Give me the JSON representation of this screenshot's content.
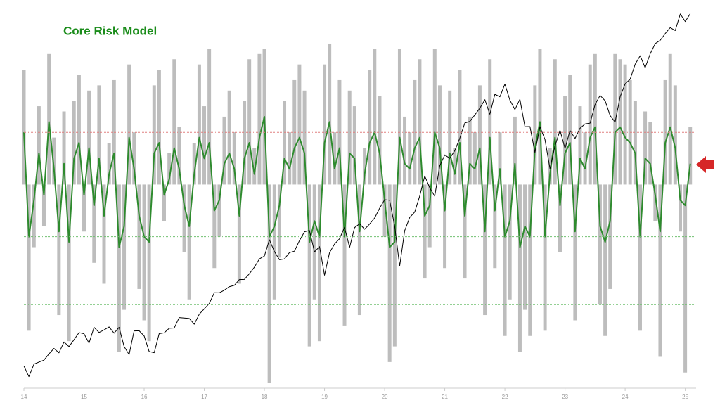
{
  "chart_data": {
    "type": "combo",
    "title": "Core Risk Model",
    "x": [
      14,
      14.083,
      14.167,
      14.25,
      14.333,
      14.417,
      14.5,
      14.583,
      14.667,
      14.75,
      14.833,
      14.917,
      15,
      15.083,
      15.167,
      15.25,
      15.333,
      15.417,
      15.5,
      15.583,
      15.667,
      15.75,
      15.833,
      15.917,
      16,
      16.083,
      16.167,
      16.25,
      16.333,
      16.417,
      16.5,
      16.583,
      16.667,
      16.75,
      16.833,
      16.917,
      17,
      17.083,
      17.167,
      17.25,
      17.333,
      17.417,
      17.5,
      17.583,
      17.667,
      17.75,
      17.833,
      17.917,
      18,
      18.083,
      18.167,
      18.25,
      18.333,
      18.417,
      18.5,
      18.583,
      18.667,
      18.75,
      18.833,
      18.917,
      19,
      19.083,
      19.167,
      19.25,
      19.333,
      19.417,
      19.5,
      19.583,
      19.667,
      19.75,
      19.833,
      19.917,
      20,
      20.083,
      20.167,
      20.25,
      20.333,
      20.417,
      20.5,
      20.583,
      20.667,
      20.75,
      20.833,
      20.917,
      21,
      21.083,
      21.167,
      21.25,
      21.333,
      21.417,
      21.5,
      21.583,
      21.667,
      21.75,
      21.833,
      21.917,
      22,
      22.083,
      22.167,
      22.25,
      22.333,
      22.417,
      22.5,
      22.583,
      22.667,
      22.75,
      22.833,
      22.917,
      23,
      23.083,
      23.167,
      23.25,
      23.333,
      23.417,
      23.5,
      23.583,
      23.667,
      23.75,
      23.833,
      23.917,
      24,
      24.083,
      24.167,
      24.25,
      24.333,
      24.417,
      24.5,
      24.583,
      24.667,
      24.75,
      24.833,
      24.917,
      25,
      25.083
    ],
    "xlim": [
      14,
      25.18
    ],
    "xticks": [
      14,
      15,
      16,
      17,
      18,
      19,
      20,
      21,
      22,
      23,
      24,
      25
    ],
    "ylim": [
      -3.9,
      3.4
    ],
    "y2lim": [
      1715,
      6175
    ],
    "y2log": true,
    "hlines": [
      {
        "value": 2.1,
        "color": "#e08080"
      },
      {
        "value": 1,
        "color": "#e08080"
      },
      {
        "value": -1,
        "color": "#70c070"
      },
      {
        "value": -2.3,
        "color": "#70c070"
      }
    ],
    "series": [
      {
        "type": "bar",
        "color": "#bdbdbd",
        "values": [
          2.2,
          -2.8,
          -1.2,
          1.5,
          -0.8,
          2.5,
          0.9,
          -2.5,
          1.4,
          -3.0,
          1.6,
          2.1,
          -0.9,
          1.8,
          -1.5,
          1.9,
          -1.9,
          0.8,
          2.0,
          -3.2,
          -2.4,
          2.3,
          1.0,
          -2.0,
          -2.6,
          -3.0,
          1.9,
          2.2,
          -0.7,
          0.6,
          2.4,
          1.1,
          -1.3,
          -2.2,
          0.8,
          2.3,
          1.5,
          2.6,
          -1.6,
          -1.0,
          1.3,
          1.8,
          1.0,
          -1.9,
          1.6,
          2.4,
          0.7,
          2.5,
          2.6,
          -3.8,
          -2.2,
          -1.4,
          1.6,
          1.0,
          2.0,
          2.3,
          1.8,
          -3.1,
          -2.2,
          -3.0,
          2.3,
          2.7,
          1.0,
          2.0,
          -2.7,
          1.8,
          1.5,
          -2.5,
          0.7,
          2.2,
          2.6,
          1.7,
          -1.0,
          -3.4,
          -3.1,
          2.6,
          1.3,
          1.0,
          2.0,
          2.4,
          -1.8,
          -1.2,
          2.6,
          1.9,
          -1.6,
          1.8,
          0.7,
          2.2,
          -1.8,
          1.3,
          1.0,
          1.9,
          -2.5,
          2.4,
          -1.6,
          1.0,
          -2.9,
          -2.2,
          1.3,
          -3.2,
          -2.4,
          -2.9,
          1.9,
          2.6,
          -2.8,
          0.7,
          2.4,
          -1.3,
          1.7,
          2.1,
          -2.6,
          1.5,
          1.0,
          2.3,
          2.5,
          -2.3,
          -2.9,
          -2.0,
          2.5,
          2.4,
          2.3,
          2.0,
          1.6,
          -2.8,
          1.4,
          1.2,
          -0.7,
          -3.3,
          2.0,
          2.5,
          1.9,
          -0.9,
          -3.6,
          1.1
        ]
      },
      {
        "type": "line",
        "color": "#2e8b2e",
        "values": [
          1.0,
          -1.0,
          -0.3,
          0.6,
          -0.2,
          1.2,
          0.3,
          -0.9,
          0.4,
          -1.1,
          0.5,
          0.8,
          -0.2,
          0.7,
          -0.4,
          0.5,
          -0.6,
          0.2,
          0.6,
          -1.2,
          -0.8,
          0.9,
          0.3,
          -0.6,
          -1.0,
          -1.1,
          0.6,
          0.8,
          -0.2,
          0.1,
          0.7,
          0.3,
          -0.4,
          -0.8,
          0.2,
          0.9,
          0.5,
          0.8,
          -0.5,
          -0.3,
          0.4,
          0.6,
          0.3,
          -0.6,
          0.5,
          0.8,
          0.2,
          0.9,
          1.3,
          -1.0,
          -0.8,
          -0.4,
          0.5,
          0.3,
          0.7,
          0.9,
          0.6,
          -1.1,
          -0.7,
          -1.0,
          0.8,
          1.2,
          0.3,
          0.7,
          -1.0,
          0.6,
          0.5,
          -0.9,
          0.2,
          0.8,
          1.0,
          0.6,
          -0.3,
          -1.2,
          -1.1,
          0.9,
          0.4,
          0.3,
          0.7,
          0.9,
          -0.6,
          -0.4,
          1.0,
          0.7,
          -0.5,
          0.6,
          0.2,
          0.8,
          -0.6,
          0.4,
          0.3,
          0.7,
          -0.9,
          0.9,
          -0.5,
          0.3,
          -1.0,
          -0.7,
          0.4,
          -1.2,
          -0.8,
          -1.0,
          0.7,
          1.2,
          -1.0,
          0.2,
          0.9,
          -0.4,
          0.6,
          0.8,
          -0.9,
          0.5,
          0.3,
          0.9,
          1.1,
          -0.8,
          -1.1,
          -0.7,
          1.0,
          1.1,
          0.9,
          0.8,
          0.6,
          -1.0,
          0.5,
          0.4,
          -0.2,
          -0.9,
          0.8,
          1.1,
          0.7,
          -0.3,
          -0.4,
          0.4
        ]
      },
      {
        "type": "line",
        "axis": "y2",
        "color": "#000000",
        "values": [
          1848,
          1783,
          1859,
          1872,
          1884,
          1924,
          1960,
          1931,
          2003,
          1972,
          2018,
          2067,
          2059,
          1995,
          2104,
          2068,
          2086,
          2107,
          2063,
          2104,
          1972,
          1920,
          2079,
          2080,
          2044,
          1940,
          1932,
          2060,
          2065,
          2097,
          2099,
          2174,
          2171,
          2168,
          2126,
          2199,
          2239,
          2279,
          2364,
          2363,
          2384,
          2412,
          2423,
          2470,
          2472,
          2519,
          2575,
          2648,
          2674,
          2824,
          2714,
          2641,
          2648,
          2705,
          2718,
          2816,
          2901,
          2914,
          2711,
          2760,
          2507,
          2704,
          2784,
          2834,
          2946,
          2752,
          2942,
          2980,
          2926,
          2977,
          3038,
          3141,
          3231,
          3226,
          2954,
          2585,
          2912,
          3044,
          3100,
          3271,
          3500,
          3363,
          3270,
          3622,
          3756,
          3714,
          3811,
          3973,
          4181,
          4204,
          4297,
          4395,
          4523,
          4307,
          4605,
          4567,
          4766,
          4516,
          4374,
          4530,
          4131,
          4132,
          3785,
          4130,
          3955,
          3585,
          3872,
          4080,
          3839,
          4077,
          3970,
          4109,
          4169,
          4180,
          4450,
          4588,
          4507,
          4288,
          4194,
          4568,
          4770,
          4845,
          5096,
          5243,
          5036,
          5277,
          5460,
          5522,
          5648,
          5762,
          5705,
          6032,
          5881,
          6040
        ]
      }
    ]
  }
}
